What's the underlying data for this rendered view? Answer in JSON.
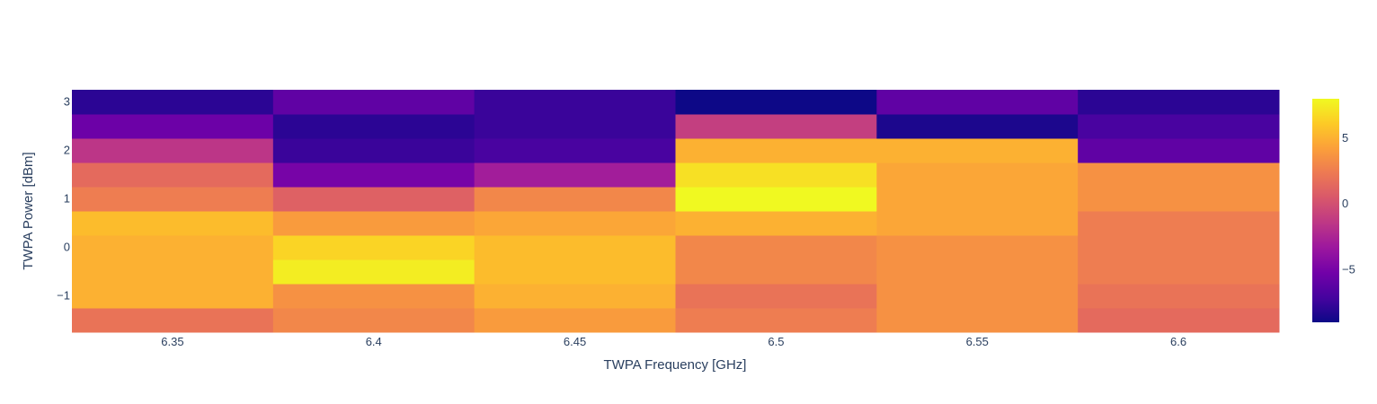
{
  "chart_data": {
    "type": "heatmap",
    "title": "",
    "xlabel": "TWPA Frequency [GHz]",
    "ylabel": "TWPA Power [dBm]",
    "x": [
      6.35,
      6.4,
      6.45,
      6.5,
      6.55,
      6.6
    ],
    "y": [
      -1.5,
      -1,
      -0.5,
      0,
      0.5,
      1,
      1.5,
      2,
      2.5,
      3
    ],
    "x_ticks": [
      "6.35",
      "6.4",
      "6.45",
      "6.5",
      "6.55",
      "6.6"
    ],
    "y_ticks": [
      "−1",
      "0",
      "1",
      "2",
      "3"
    ],
    "y_tick_values": [
      -1,
      0,
      1,
      2,
      3
    ],
    "z": [
      [
        2.0,
        3.0,
        4.0,
        2.5,
        3.5,
        1.5
      ],
      [
        5.0,
        3.5,
        5.0,
        2.0,
        3.5,
        2.0
      ],
      [
        5.0,
        7.5,
        5.5,
        3.0,
        3.5,
        2.5
      ],
      [
        5.0,
        6.5,
        5.5,
        3.0,
        3.5,
        2.5
      ],
      [
        5.5,
        4.0,
        4.5,
        5.0,
        4.5,
        2.5
      ],
      [
        2.5,
        1.0,
        3.0,
        8.0,
        4.5,
        3.5
      ],
      [
        1.5,
        -5.0,
        -3.0,
        7.0,
        4.5,
        3.5
      ],
      [
        -1.5,
        -7.5,
        -7.0,
        5.0,
        5.0,
        -6.0
      ],
      [
        -5.5,
        -8.0,
        -7.5,
        -1.0,
        -8.5,
        -7.0
      ],
      [
        -8.0,
        -6.0,
        -7.5,
        -9.0,
        -6.0,
        -8.0
      ]
    ],
    "zmin": -9,
    "zmax": 8,
    "colorscale": "plasma",
    "colorbar": {
      "ticks": [
        "−5",
        "0",
        "5"
      ],
      "tick_values": [
        -5,
        0,
        5
      ]
    },
    "grid": false
  }
}
